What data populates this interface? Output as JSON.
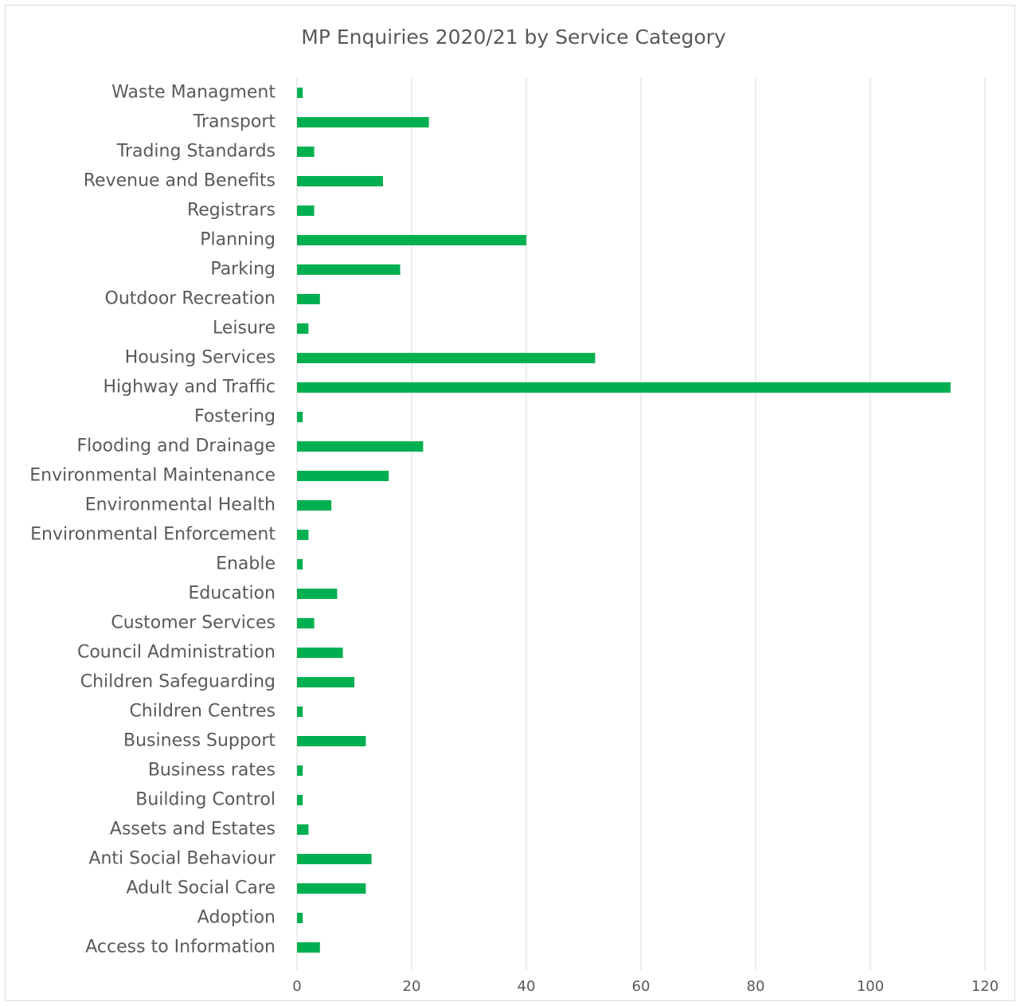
{
  "chart_data": {
    "type": "bar",
    "orientation": "horizontal",
    "title": "MP Enquiries 2020/21 by Service Category",
    "categories": [
      "Waste Managment",
      "Transport",
      "Trading Standards",
      "Revenue and Benefits",
      "Registrars",
      "Planning",
      "Parking",
      "Outdoor Recreation",
      "Leisure",
      "Housing Services",
      "Highway and Traffic",
      "Fostering",
      "Flooding and Drainage",
      "Environmental Maintenance",
      "Environmental Health",
      "Environmental Enforcement",
      "Enable",
      "Education",
      "Customer Services",
      "Council Administration",
      "Children Safeguarding",
      "Children Centres",
      "Business Support",
      "Business rates",
      "Building Control",
      "Assets and Estates",
      "Anti Social Behaviour",
      "Adult Social Care",
      "Adoption",
      "Access to Information"
    ],
    "values": [
      1,
      23,
      3,
      15,
      3,
      40,
      18,
      4,
      2,
      52,
      114,
      1,
      22,
      16,
      6,
      2,
      1,
      7,
      3,
      8,
      10,
      1,
      12,
      1,
      1,
      2,
      13,
      12,
      1,
      4
    ],
    "color": "#00b050",
    "xlim": [
      0,
      120
    ],
    "xticks": [
      0,
      20,
      40,
      60,
      80,
      100,
      120
    ],
    "grid": true
  }
}
